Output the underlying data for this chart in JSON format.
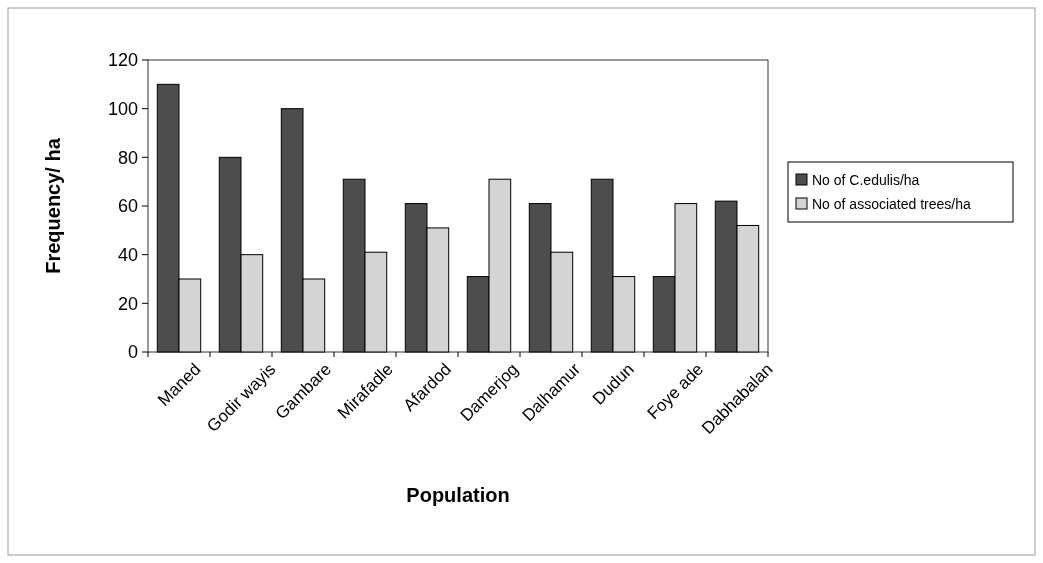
{
  "chart_data": {
    "type": "bar",
    "xlabel": "Population",
    "ylabel": "Frequency/ ha",
    "categories": [
      "Maned",
      "Godir wayis",
      "Gambare",
      "Mirafadle",
      "Afardod",
      "Damerjog",
      "Dalhamur",
      "Dudun",
      "Foye ade",
      "Dabhabalan"
    ],
    "series": [
      {
        "name": "No of C.edulis/ha",
        "color": "#4d4d4d",
        "values": [
          110,
          80,
          100,
          71,
          61,
          31,
          61,
          71,
          31,
          62
        ]
      },
      {
        "name": "No of associated trees/ha",
        "color": "#d4d4d4",
        "values": [
          30,
          40,
          30,
          41,
          51,
          71,
          41,
          31,
          61,
          52
        ]
      }
    ],
    "ylim": [
      0,
      120
    ],
    "yticks": [
      0,
      20,
      40,
      60,
      80,
      100,
      120
    ],
    "grid": false,
    "legend": "right"
  }
}
